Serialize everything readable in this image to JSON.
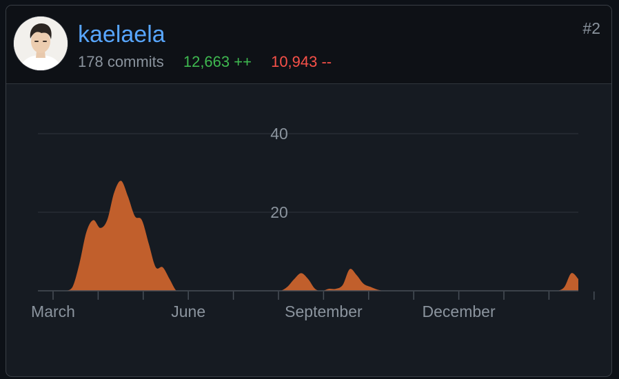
{
  "contributor": {
    "username": "kaelaela",
    "commits": "178 commits",
    "additions": "12,663 ++",
    "deletions": "10,943 --",
    "rank": "#2"
  },
  "colors": {
    "area": "#c15f2c",
    "username": "#58a6ff",
    "additions": "#3fb950",
    "deletions": "#f85149"
  },
  "chart_data": {
    "type": "area",
    "ylim": [
      0,
      50
    ],
    "y_ticks": [
      20,
      40
    ],
    "grid": true,
    "x_tick_count": 13,
    "x_labels": [
      {
        "tick": 0,
        "label": "March"
      },
      {
        "tick": 3,
        "label": "June"
      },
      {
        "tick": 6,
        "label": "September"
      },
      {
        "tick": 9,
        "label": "December"
      }
    ],
    "series": [
      {
        "values": [
          0,
          0,
          0,
          0,
          0,
          1,
          7,
          15,
          18,
          16,
          18,
          25,
          28,
          24,
          19,
          18,
          12,
          6,
          6,
          3,
          0,
          0,
          0,
          0,
          0,
          0,
          0,
          0,
          0,
          0,
          0,
          0,
          0,
          0,
          0,
          0,
          1,
          3,
          4.5,
          3,
          0.5,
          0,
          0.5,
          0.5,
          1.5,
          5.5,
          4,
          1.8,
          1,
          0.3,
          0,
          0,
          0,
          0,
          0,
          0,
          0,
          0,
          0,
          0,
          0,
          0,
          0,
          0,
          0,
          0,
          0,
          0,
          0,
          0,
          0,
          0,
          0,
          0,
          0,
          0,
          1,
          4.5,
          3
        ]
      }
    ]
  }
}
